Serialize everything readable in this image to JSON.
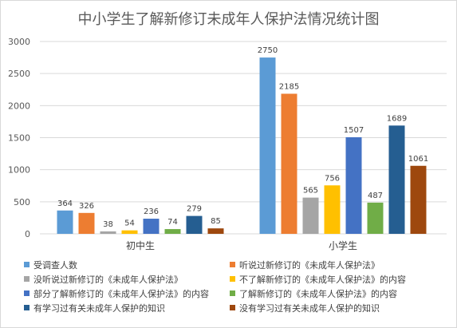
{
  "chart_data": {
    "type": "bar",
    "title": "中小学生了解新修订未成年人保护法情况统计图",
    "categories": [
      "初中生",
      "小学生"
    ],
    "ylim": [
      0,
      3000
    ],
    "yticks": [
      0,
      500,
      1000,
      1500,
      2000,
      2500,
      3000
    ],
    "grid": true,
    "legend_position": "bottom",
    "series": [
      {
        "name": "受调查人数",
        "color": "#5B9BD5",
        "values": [
          364,
          2750
        ]
      },
      {
        "name": "听说过新修订的《未成年人保护法》",
        "color": "#ED7D31",
        "values": [
          326,
          2185
        ]
      },
      {
        "name": "没听说过新修订的《未成年人保护法》",
        "color": "#A5A5A5",
        "values": [
          38,
          565
        ]
      },
      {
        "name": "不了解新修订的《未成年人保护法》的内容",
        "color": "#FFC000",
        "values": [
          54,
          756
        ]
      },
      {
        "name": "部分了解新修订的《未成年人保护法》的内容",
        "color": "#4472C4",
        "values": [
          236,
          1507
        ]
      },
      {
        "name": "了解新修订的《未成年人保护法》的内容",
        "color": "#70AD47",
        "values": [
          74,
          487
        ]
      },
      {
        "name": "有学习过有关未成年人保护的知识",
        "color": "#255E91",
        "values": [
          279,
          1689
        ]
      },
      {
        "name": "没有学习过有关未成年人保护的知识",
        "color": "#9E480E",
        "values": [
          85,
          1061
        ]
      }
    ]
  }
}
